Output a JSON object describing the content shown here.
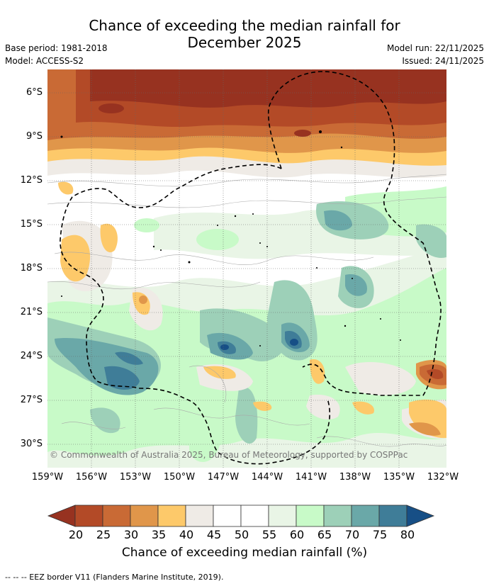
{
  "title_line1": "Chance of exceeding the median rainfall for",
  "title_line2": "December 2025",
  "base_period": "Base period: 1981-2018",
  "model": "Model: ACCESS-S2",
  "model_run": "Model run: 22/11/2025",
  "issued": "Issued: 24/11/2025",
  "copyright": "© Commonwealth of Australia 2025, Bureau of Meteorology, supported by COSPPac",
  "lat_labels": [
    "6°S",
    "9°S",
    "12°S",
    "15°S",
    "18°S",
    "21°S",
    "24°S",
    "27°S",
    "30°S"
  ],
  "lon_labels": [
    "159°W",
    "156°W",
    "153°W",
    "150°W",
    "147°W",
    "144°W",
    "141°W",
    "138°W",
    "135°W",
    "132°W"
  ],
  "colorbar": {
    "label": "Chance of exceeding median rainfall (%)",
    "ticks": [
      "20",
      "25",
      "30",
      "35",
      "40",
      "45",
      "50",
      "55",
      "60",
      "65",
      "70",
      "75",
      "80"
    ],
    "colors": [
      "#973220",
      "#b34a27",
      "#c96a35",
      "#e0964a",
      "#fdc96a",
      "#efebe6",
      "#ffffff",
      "#ffffff",
      "#e9f5e6",
      "#c8fac8",
      "#9dd0b8",
      "#6aa8a8",
      "#3f7d98",
      "#174f86"
    ]
  },
  "eez_note": "--  --  -- EEZ border V11 (Flanders Marine Institute, 2019)."
}
